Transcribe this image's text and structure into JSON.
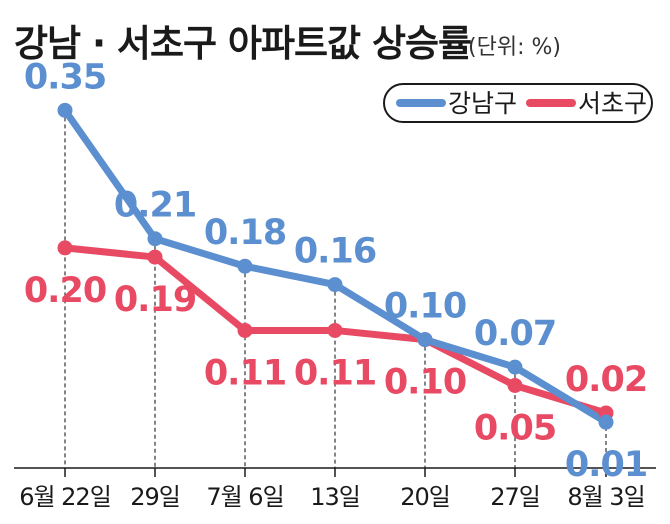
{
  "header": {
    "title": "강남 · 서초구 아파트값 상승률",
    "unit": "(단위: %)"
  },
  "chart_data": {
    "type": "line",
    "title": "강남 · 서초구 아파트값 상승률",
    "subtitle": "(단위: %)",
    "xlabel": "",
    "ylabel": "",
    "categories": [
      "6월 22일",
      "29일",
      "7월 6일",
      "13일",
      "20일",
      "27일",
      "8월 3일"
    ],
    "series": [
      {
        "name": "강남구",
        "color": "#5b8fd0",
        "values": [
          0.35,
          0.21,
          0.18,
          0.16,
          0.1,
          0.07,
          0.01
        ]
      },
      {
        "name": "서초구",
        "color": "#e84a64",
        "values": [
          0.2,
          0.19,
          0.11,
          0.11,
          0.1,
          0.05,
          0.02
        ]
      }
    ],
    "labels": {
      "강남구": [
        "0.35",
        "0.21",
        "0.18",
        "0.16",
        "0.10",
        "0.07",
        "0.01"
      ],
      "서초구": [
        "0.20",
        "0.19",
        "0.11",
        "0.11",
        "0.10",
        "0.05",
        "0.02"
      ]
    },
    "legend_position": "top-right",
    "grid": false,
    "ylim": [
      -0.04,
      0.37
    ]
  }
}
